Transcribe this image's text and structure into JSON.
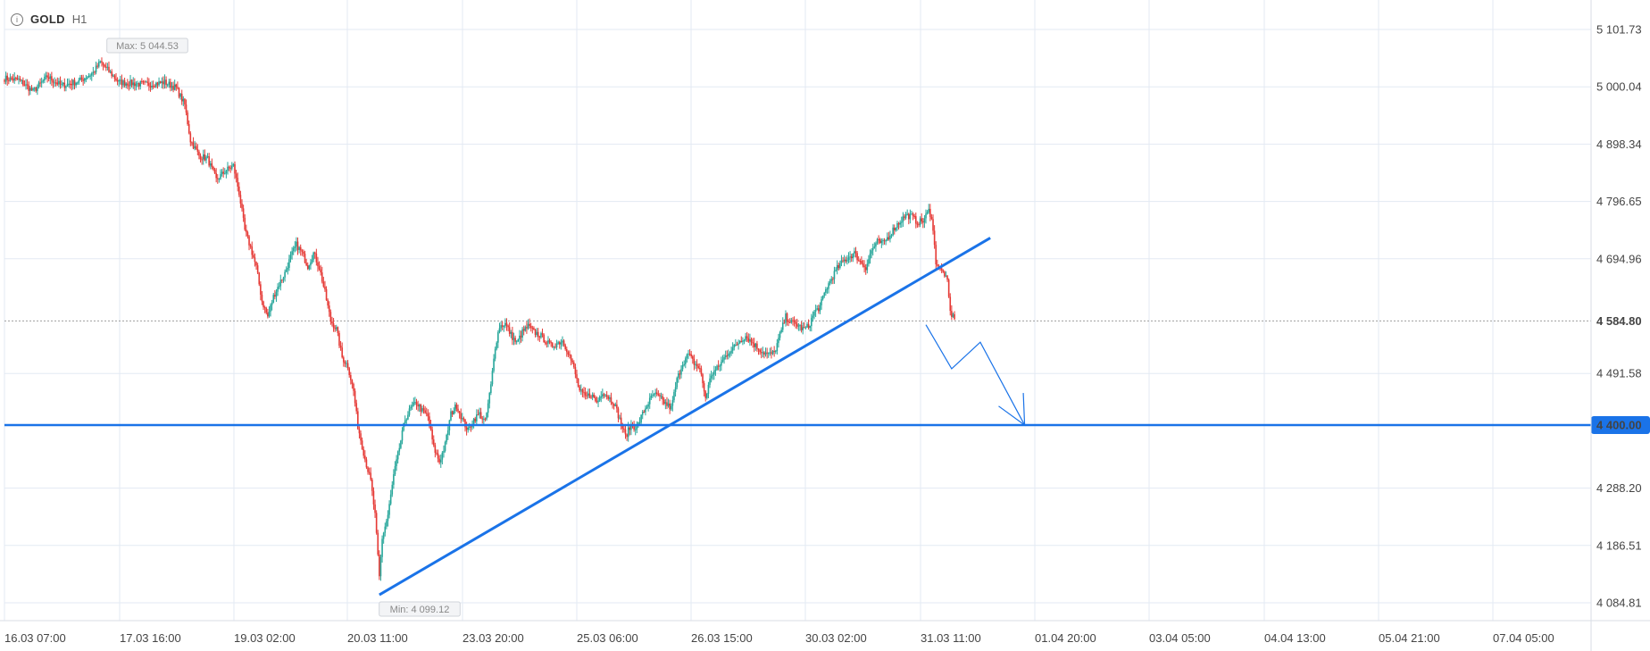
{
  "header": {
    "symbol": "GOLD",
    "timeframe": "H1",
    "info_icon": "info-icon"
  },
  "colors": {
    "up": "#26a69a",
    "down": "#e53935",
    "annotation": "#1a73e8",
    "grid": "#e3eaf3",
    "price_line": "#9e9e9e"
  },
  "chart_data": {
    "type": "candlestick",
    "title": "",
    "symbol": "GOLD",
    "timeframe": "H1",
    "y_ticks": [
      5101.73,
      5000.04,
      4898.34,
      4796.65,
      4694.96,
      4584.8,
      4491.58,
      4400.0,
      4288.2,
      4186.51,
      4084.81
    ],
    "y_tick_labels": [
      "5 101.73",
      "5 000.04",
      "4 898.34",
      "4 796.65",
      "4 694.96",
      "4 584.80",
      "4 491.58",
      "4 400.00",
      "4 288.20",
      "4 186.51",
      "4 084.81"
    ],
    "ylim": [
      4060,
      5130
    ],
    "x_ticks": [
      "16.03 07:00",
      "17.03 16:00",
      "19.03 02:00",
      "20.03 11:00",
      "23.03 20:00",
      "25.03 06:00",
      "26.03 15:00",
      "30.03 02:00",
      "31.03 11:00",
      "01.04 20:00",
      "03.04 05:00",
      "04.04 13:00",
      "05.04 21:00",
      "07.04 05:00"
    ],
    "current_price": 4584.8,
    "current_price_label": "4 584.80",
    "max_label": "Max: 5 044.53",
    "max_value": 5044.53,
    "min_label": "Min: 4 099.12",
    "min_value": 4099.12,
    "close_path": [
      [
        0,
        5015
      ],
      [
        10,
        5012
      ],
      [
        20,
        4992
      ],
      [
        30,
        5018
      ],
      [
        40,
        5002
      ],
      [
        52,
        5010
      ],
      [
        62,
        5025
      ],
      [
        67,
        5044
      ],
      [
        80,
        5008
      ],
      [
        90,
        5006
      ],
      [
        100,
        5004
      ],
      [
        112,
        5008
      ],
      [
        120,
        4998
      ],
      [
        126,
        4968
      ],
      [
        130,
        4905
      ],
      [
        136,
        4878
      ],
      [
        142,
        4872
      ],
      [
        148,
        4835
      ],
      [
        155,
        4852
      ],
      [
        160,
        4860
      ],
      [
        164,
        4812
      ],
      [
        168,
        4745
      ],
      [
        172,
        4715
      ],
      [
        176,
        4680
      ],
      [
        180,
        4620
      ],
      [
        184,
        4592
      ],
      [
        188,
        4628
      ],
      [
        192,
        4650
      ],
      [
        196,
        4670
      ],
      [
        200,
        4698
      ],
      [
        204,
        4720
      ],
      [
        208,
        4705
      ],
      [
        212,
        4682
      ],
      [
        216,
        4705
      ],
      [
        220,
        4680
      ],
      [
        224,
        4635
      ],
      [
        228,
        4585
      ],
      [
        232,
        4570
      ],
      [
        236,
        4520
      ],
      [
        240,
        4505
      ],
      [
        244,
        4460
      ],
      [
        247,
        4398
      ],
      [
        252,
        4340
      ],
      [
        256,
        4300
      ],
      [
        259,
        4240
      ],
      [
        262,
        4130
      ],
      [
        264,
        4200
      ],
      [
        268,
        4240
      ],
      [
        272,
        4310
      ],
      [
        276,
        4360
      ],
      [
        280,
        4410
      ],
      [
        284,
        4430
      ],
      [
        288,
        4440
      ],
      [
        292,
        4425
      ],
      [
        296,
        4415
      ],
      [
        300,
        4360
      ],
      [
        304,
        4335
      ],
      [
        308,
        4365
      ],
      [
        312,
        4420
      ],
      [
        316,
        4435
      ],
      [
        320,
        4410
      ],
      [
        324,
        4390
      ],
      [
        328,
        4410
      ],
      [
        332,
        4420
      ],
      [
        336,
        4405
      ],
      [
        340,
        4470
      ],
      [
        343,
        4540
      ],
      [
        346,
        4575
      ],
      [
        350,
        4580
      ],
      [
        354,
        4560
      ],
      [
        358,
        4545
      ],
      [
        362,
        4565
      ],
      [
        366,
        4575
      ],
      [
        370,
        4565
      ],
      [
        374,
        4560
      ],
      [
        378,
        4550
      ],
      [
        382,
        4540
      ],
      [
        386,
        4545
      ],
      [
        390,
        4550
      ],
      [
        394,
        4530
      ],
      [
        398,
        4500
      ],
      [
        402,
        4460
      ],
      [
        406,
        4450
      ],
      [
        410,
        4455
      ],
      [
        414,
        4440
      ],
      [
        418,
        4460
      ],
      [
        422,
        4450
      ],
      [
        426,
        4440
      ],
      [
        430,
        4410
      ],
      [
        434,
        4380
      ],
      [
        438,
        4400
      ],
      [
        442,
        4395
      ],
      [
        446,
        4420
      ],
      [
        450,
        4440
      ],
      [
        454,
        4455
      ],
      [
        458,
        4448
      ],
      [
        462,
        4438
      ],
      [
        466,
        4430
      ],
      [
        470,
        4480
      ],
      [
        474,
        4510
      ],
      [
        478,
        4525
      ],
      [
        482,
        4510
      ],
      [
        486,
        4500
      ],
      [
        490,
        4448
      ],
      [
        494,
        4490
      ],
      [
        498,
        4500
      ],
      [
        502,
        4515
      ],
      [
        506,
        4530
      ],
      [
        510,
        4538
      ],
      [
        514,
        4550
      ],
      [
        518,
        4558
      ],
      [
        522,
        4548
      ],
      [
        526,
        4538
      ],
      [
        530,
        4530
      ],
      [
        534,
        4525
      ],
      [
        538,
        4528
      ],
      [
        542,
        4560
      ],
      [
        546,
        4592
      ],
      [
        550,
        4582
      ],
      [
        554,
        4578
      ],
      [
        558,
        4570
      ],
      [
        562,
        4575
      ],
      [
        566,
        4600
      ],
      [
        570,
        4610
      ],
      [
        574,
        4640
      ],
      [
        578,
        4660
      ],
      [
        582,
        4678
      ],
      [
        586,
        4690
      ],
      [
        590,
        4698
      ],
      [
        594,
        4705
      ],
      [
        598,
        4690
      ],
      [
        602,
        4680
      ],
      [
        606,
        4710
      ],
      [
        610,
        4725
      ],
      [
        614,
        4722
      ],
      [
        618,
        4735
      ],
      [
        622,
        4750
      ],
      [
        626,
        4762
      ],
      [
        630,
        4772
      ],
      [
        634,
        4770
      ],
      [
        638,
        4760
      ],
      [
        642,
        4762
      ],
      [
        646,
        4780
      ],
      [
        648,
        4770
      ],
      [
        651,
        4690
      ],
      [
        654,
        4675
      ],
      [
        657,
        4668
      ],
      [
        659,
        4652
      ],
      [
        661,
        4600
      ],
      [
        664,
        4588
      ]
    ],
    "annotations": [
      {
        "type": "horizontal_line",
        "price": 4400.0,
        "label": "4 400.00"
      },
      {
        "type": "trend_line",
        "from": [
          262,
          4099
        ],
        "to": [
          689,
          4732
        ]
      },
      {
        "type": "forecast_path",
        "points": [
          [
            644,
            4578
          ],
          [
            662,
            4500
          ],
          [
            682,
            4547
          ],
          [
            713,
            4400
          ]
        ]
      }
    ]
  }
}
